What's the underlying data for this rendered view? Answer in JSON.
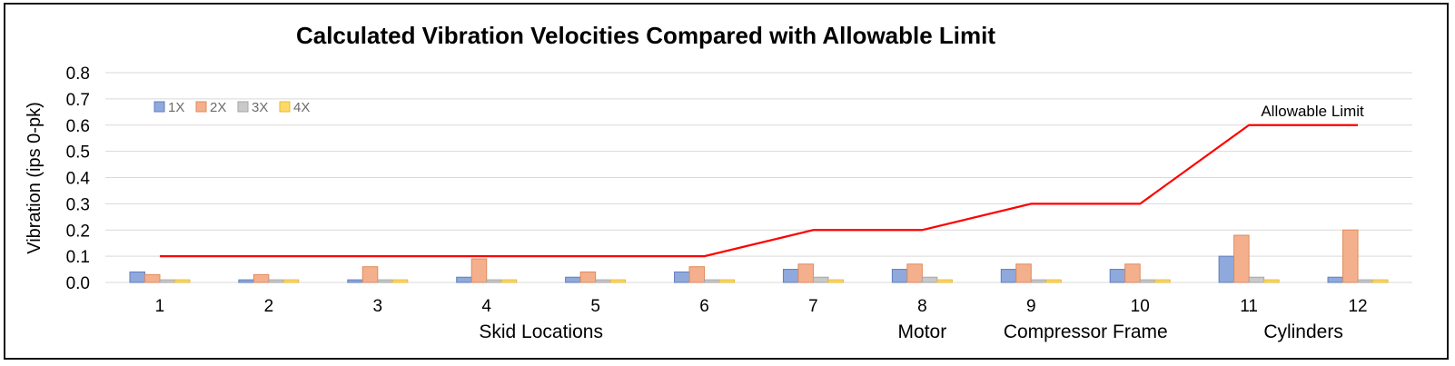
{
  "chart_data": {
    "type": "bar",
    "title": "Calculated Vibration Velocities Compared with Allowable Limit",
    "ylabel": "Vibration (ips 0-pk)",
    "xlabel": "",
    "ylim": [
      0,
      0.8
    ],
    "yticks": [
      "0.0",
      "0.1",
      "0.2",
      "0.3",
      "0.4",
      "0.5",
      "0.6",
      "0.7",
      "0.8"
    ],
    "categories": [
      "1",
      "2",
      "3",
      "4",
      "5",
      "6",
      "7",
      "8",
      "9",
      "10",
      "11",
      "12"
    ],
    "series": [
      {
        "name": "1X",
        "color": "#8fa9dc",
        "values": [
          0.04,
          0.01,
          0.01,
          0.02,
          0.02,
          0.04,
          0.05,
          0.05,
          0.05,
          0.05,
          0.1,
          0.02
        ]
      },
      {
        "name": "2X",
        "color": "#f4b08c",
        "values": [
          0.03,
          0.03,
          0.06,
          0.09,
          0.04,
          0.06,
          0.07,
          0.07,
          0.07,
          0.07,
          0.18,
          0.2
        ]
      },
      {
        "name": "3X",
        "color": "#c9c9c9",
        "values": [
          0.01,
          0.01,
          0.01,
          0.01,
          0.01,
          0.01,
          0.02,
          0.02,
          0.01,
          0.01,
          0.02,
          0.01
        ]
      },
      {
        "name": "4X",
        "color": "#ffd966",
        "values": [
          0.01,
          0.01,
          0.01,
          0.01,
          0.01,
          0.01,
          0.01,
          0.01,
          0.01,
          0.01,
          0.01,
          0.01
        ]
      }
    ],
    "limit_line": {
      "name": "Allowable Limit",
      "color": "#ff0000",
      "values": [
        0.1,
        0.1,
        0.1,
        0.1,
        0.1,
        0.1,
        0.2,
        0.2,
        0.3,
        0.3,
        0.6,
        0.6
      ]
    },
    "group_labels": [
      {
        "label": "Skid Locations",
        "center_category": 3.5
      },
      {
        "label": "Motor",
        "center_category": 7
      },
      {
        "label": "Compressor Frame",
        "center_category": 8.5
      },
      {
        "label": "Cylinders",
        "center_category": 10.5
      }
    ],
    "legend_position": "top-left",
    "grid": true
  }
}
